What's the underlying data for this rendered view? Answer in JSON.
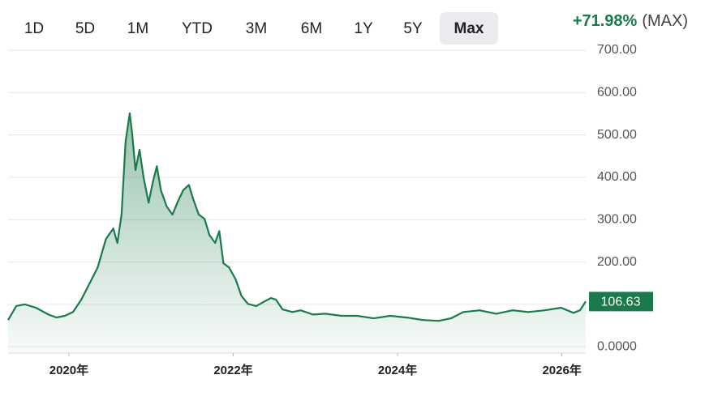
{
  "header": {
    "range_buttons": [
      {
        "label": "1D"
      },
      {
        "label": "5D"
      },
      {
        "label": "1M"
      },
      {
        "label": "YTD"
      },
      {
        "label": "3M"
      },
      {
        "label": "6M"
      },
      {
        "label": "1Y"
      },
      {
        "label": "5Y"
      },
      {
        "label": "Max",
        "selected": true
      }
    ],
    "change": "+71.98%",
    "change_period": "(MAX)"
  },
  "chart_data": {
    "type": "area",
    "color": "#1a7a4c",
    "x": [
      2019.26,
      2019.36,
      2019.46,
      2019.6,
      2019.75,
      2019.85,
      2019.95,
      2020.05,
      2020.15,
      2020.25,
      2020.35,
      2020.45,
      2020.54,
      2020.59,
      2020.64,
      2020.69,
      2020.74,
      2020.77,
      2020.81,
      2020.86,
      2020.91,
      2020.97,
      2021.02,
      2021.07,
      2021.12,
      2021.19,
      2021.26,
      2021.32,
      2021.39,
      2021.46,
      2021.51,
      2021.58,
      2021.65,
      2021.71,
      2021.78,
      2021.83,
      2021.88,
      2021.95,
      2022.03,
      2022.1,
      2022.18,
      2022.28,
      2022.38,
      2022.46,
      2022.52,
      2022.6,
      2022.72,
      2022.82,
      2022.97,
      2023.12,
      2023.32,
      2023.51,
      2023.71,
      2023.91,
      2024.11,
      2024.31,
      2024.5,
      2024.65,
      2024.8,
      2025.0,
      2025.2,
      2025.4,
      2025.59,
      2025.79,
      2025.99,
      2026.14,
      2026.22,
      2026.29
    ],
    "values": [
      63,
      96,
      100,
      92,
      76,
      69,
      73,
      82,
      111,
      149,
      187,
      254,
      279,
      245,
      312,
      484,
      551,
      503,
      417,
      465,
      398,
      340,
      388,
      426,
      369,
      331,
      312,
      340,
      369,
      382,
      350,
      312,
      302,
      264,
      245,
      273,
      197,
      187,
      159,
      120,
      101,
      96,
      107,
      115,
      111,
      88,
      82,
      86,
      76,
      78,
      73,
      73,
      67,
      73,
      69,
      63,
      61,
      67,
      82,
      86,
      78,
      86,
      82,
      86,
      92,
      80,
      86,
      107
    ],
    "last_price": 106.63,
    "xlim": [
      2019.26,
      2026.29
    ],
    "xticks": [
      {
        "value": 2020,
        "label": "2020年"
      },
      {
        "value": 2022,
        "label": "2022年"
      },
      {
        "value": 2024,
        "label": "2024年"
      },
      {
        "value": 2026,
        "label": "2026年"
      }
    ],
    "ylim": [
      -15,
      700
    ],
    "yticks": [
      {
        "value": 0,
        "label": "0.0000"
      },
      {
        "value": 100,
        "label": "100.00"
      },
      {
        "value": 200,
        "label": "200.00"
      },
      {
        "value": 300,
        "label": "300.00"
      },
      {
        "value": 400,
        "label": "400.00"
      },
      {
        "value": 500,
        "label": "500.00"
      },
      {
        "value": 600,
        "label": "600.00"
      },
      {
        "value": 700,
        "label": "700.00"
      }
    ],
    "grid": true
  }
}
